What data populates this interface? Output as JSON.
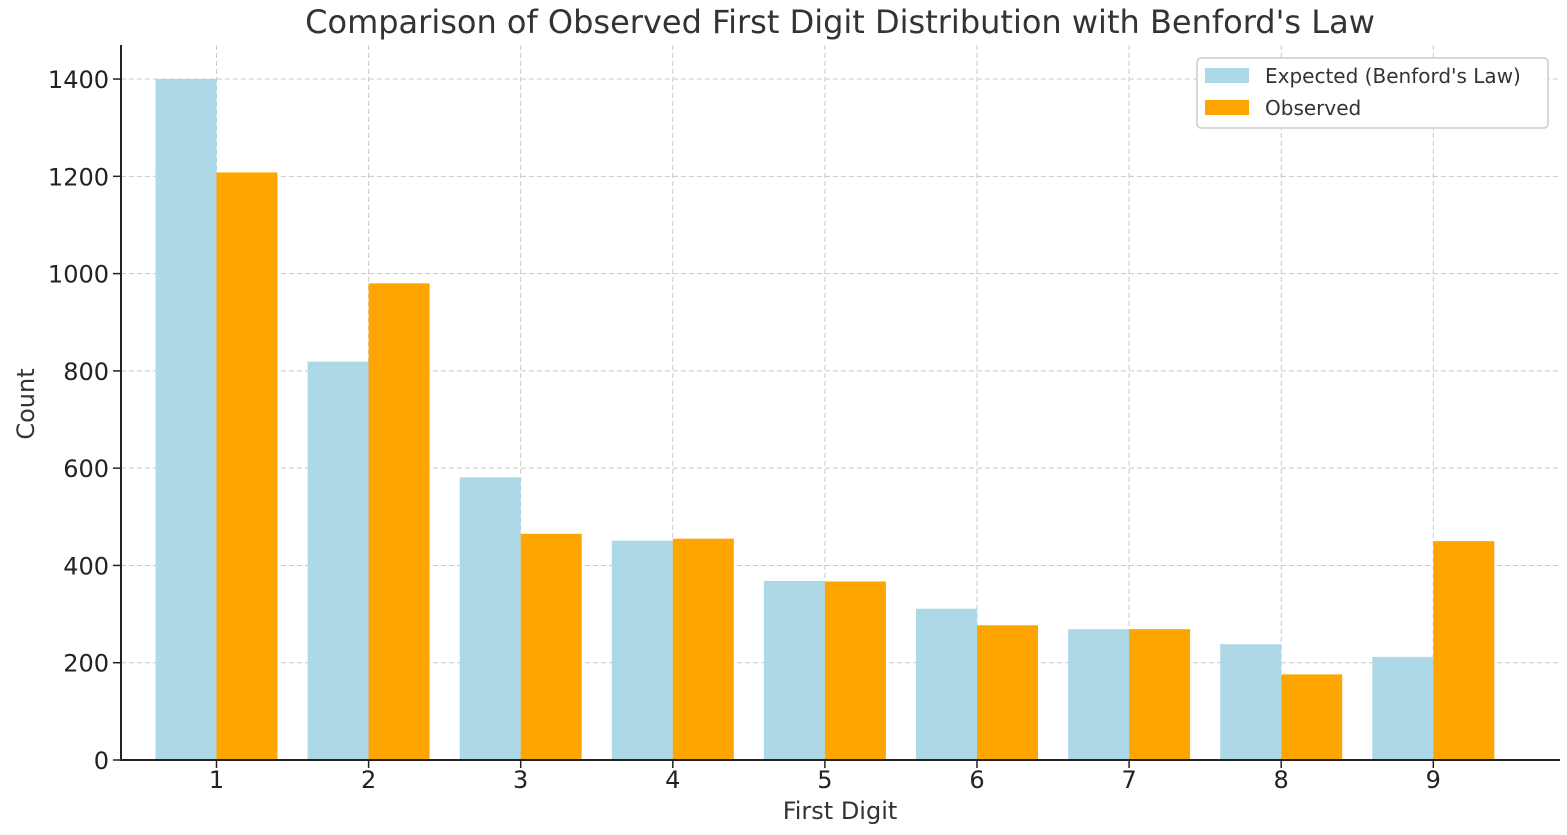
{
  "chart_data": {
    "type": "bar",
    "title": "Comparison of Observed First Digit Distribution with Benford's Law",
    "xlabel": "First Digit",
    "ylabel": "Count",
    "categories": [
      "1",
      "2",
      "3",
      "4",
      "5",
      "6",
      "7",
      "8",
      "9"
    ],
    "ylim": [
      0,
      1470
    ],
    "yticks": [
      0,
      200,
      400,
      600,
      800,
      1000,
      1200,
      1400
    ],
    "grid": true,
    "legend_position": "top-right",
    "series": [
      {
        "name": "Expected (Benford's Law)",
        "color": "#add8e6",
        "values": [
          1400,
          819,
          581,
          451,
          368,
          311,
          269,
          238,
          212
        ]
      },
      {
        "name": "Observed",
        "color": "#ffa500",
        "values": [
          1208,
          980,
          465,
          455,
          367,
          277,
          269,
          176,
          450
        ]
      }
    ]
  }
}
